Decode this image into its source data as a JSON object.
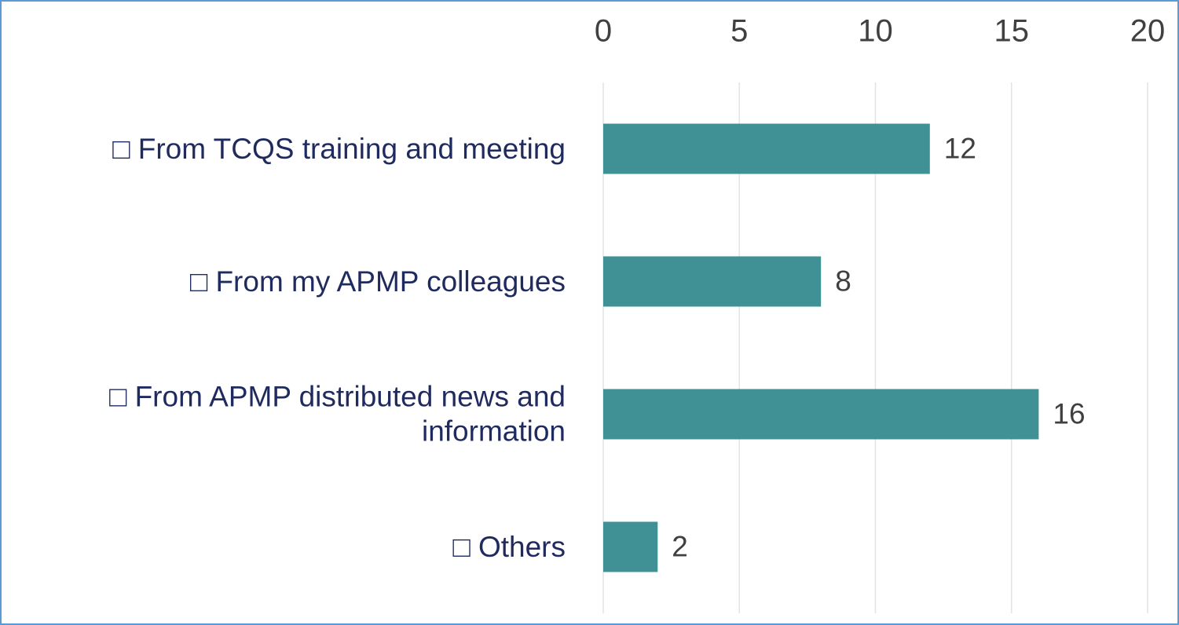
{
  "chart_data": {
    "type": "bar",
    "orientation": "horizontal",
    "categories": [
      "□ From TCQS training and meeting",
      "□ From my APMP colleagues",
      "□ From APMP distributed news and information",
      "□ Others"
    ],
    "values": [
      12,
      8,
      16,
      2
    ],
    "color": "#3f9196",
    "xlim": [
      0,
      20
    ],
    "xticks": [
      0,
      5,
      10,
      15,
      20
    ],
    "grid": true,
    "data_labels": true
  }
}
